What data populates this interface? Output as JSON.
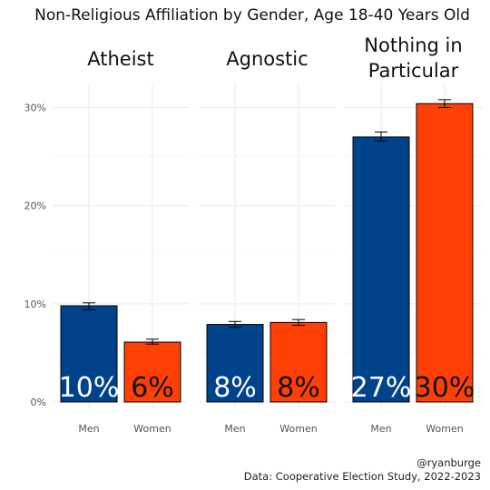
{
  "title": "Non-Religious Affiliation by Gender, Age 18-40 Years Old",
  "caption": {
    "credit": "@ryanburge",
    "source": "Data: Cooperative Election Study, 2022-2023"
  },
  "colors": {
    "Men": "#00438a",
    "Women": "#ff4006"
  },
  "chart_data": {
    "type": "bar",
    "title": "Non-Religious Affiliation by Gender, Age 18-40 Years Old",
    "xlabel": "",
    "ylabel": "",
    "ylim": [
      0,
      0.31
    ],
    "yticks": [
      0,
      0.1,
      0.2,
      0.3
    ],
    "ytick_labels": [
      "0%",
      "10%",
      "20%",
      "30%"
    ],
    "categories": [
      "Men",
      "Women"
    ],
    "grid": true,
    "legend": "none",
    "facets": [
      {
        "name": "Atheist",
        "label_lines": [
          "Atheist"
        ],
        "bars": [
          {
            "category": "Men",
            "value": 0.098,
            "err_low": 0.094,
            "err_high": 0.101,
            "label": "10%"
          },
          {
            "category": "Women",
            "value": 0.061,
            "err_low": 0.059,
            "err_high": 0.064,
            "label": "6%"
          }
        ]
      },
      {
        "name": "Agnostic",
        "label_lines": [
          "Agnostic"
        ],
        "bars": [
          {
            "category": "Men",
            "value": 0.079,
            "err_low": 0.076,
            "err_high": 0.082,
            "label": "8%"
          },
          {
            "category": "Women",
            "value": 0.081,
            "err_low": 0.078,
            "err_high": 0.084,
            "label": "8%"
          }
        ]
      },
      {
        "name": "Nothing in Particular",
        "label_lines": [
          "Nothing in",
          "Particular"
        ],
        "bars": [
          {
            "category": "Men",
            "value": 0.27,
            "err_low": 0.266,
            "err_high": 0.275,
            "label": "27%"
          },
          {
            "category": "Women",
            "value": 0.304,
            "err_low": 0.3,
            "err_high": 0.308,
            "label": "30%"
          }
        ]
      }
    ]
  }
}
